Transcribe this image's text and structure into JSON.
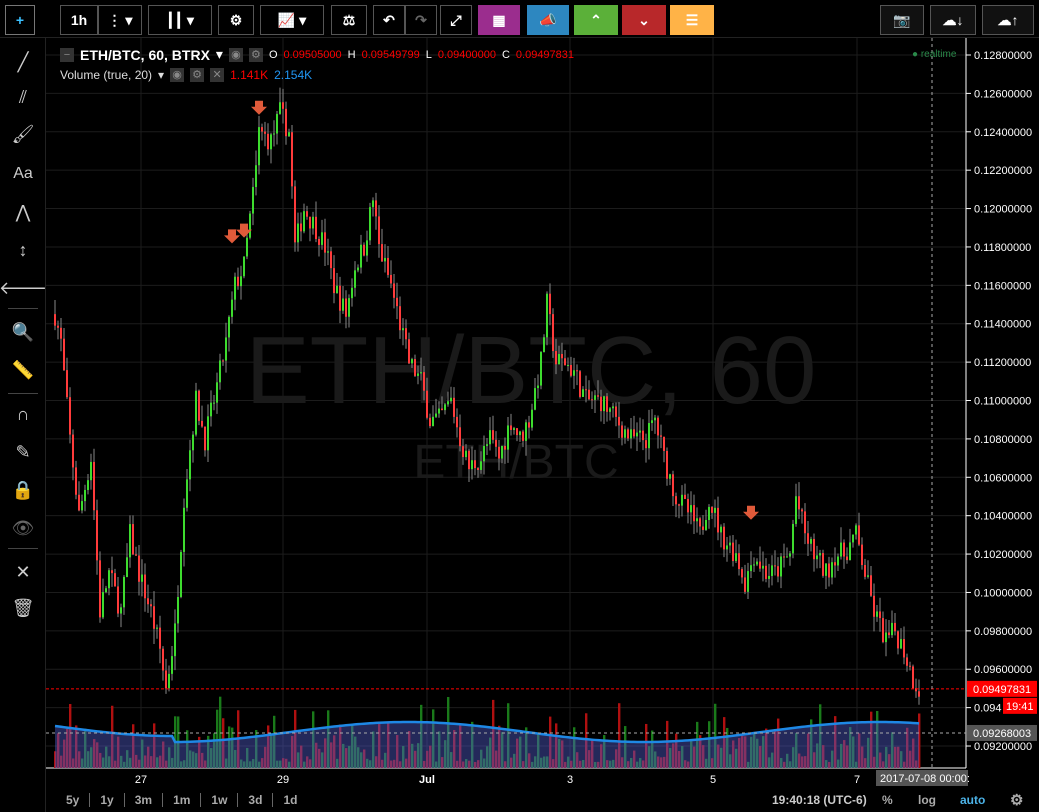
{
  "toolbar": {
    "interval": "1h",
    "buttons": [
      "crosshair",
      "interval",
      "more",
      "chart-type",
      "settings",
      "indicators",
      "compare",
      "undo",
      "redo",
      "fullscreen",
      "binance",
      "announce",
      "up",
      "down",
      "list"
    ],
    "right": [
      "snapshot",
      "load",
      "save"
    ],
    "colors": {
      "purple": "#9b2d8e",
      "blue": "#2d87c0",
      "green": "#5bb039",
      "red": "#b8282a",
      "orange": "#ffb347"
    }
  },
  "legend": {
    "symbol": "ETH/BTC, 60, BTRX",
    "o_label": "O",
    "o": "0.09505000",
    "h_label": "H",
    "h": "0.09549799",
    "l_label": "L",
    "l": "0.09400000",
    "c_label": "C",
    "c": "0.09497831",
    "realtime": "realtime"
  },
  "volume_legend": {
    "label": "Volume (true, 20)",
    "v1": "1.141K",
    "v2": "2.154K"
  },
  "watermark": {
    "main": "ETH/BTC, 60",
    "sub": "ETH/BTC"
  },
  "price_axis": {
    "ticks": [
      "0.12800000",
      "0.12600000",
      "0.12400000",
      "0.12200000",
      "0.12000000",
      "0.11800000",
      "0.11600000",
      "0.11400000",
      "0.11200000",
      "0.11000000",
      "0.10800000",
      "0.10600000",
      "0.10400000",
      "0.10200000",
      "0.10000000",
      "0.09800000",
      "0.09600000",
      "0.094",
      "0.09200000"
    ],
    "last_price": "0.09497831",
    "countdown": "19:41",
    "crosshair_price": "0.09268003"
  },
  "time_axis": {
    "ticks": [
      "27",
      "29",
      "Jul",
      "3",
      "5",
      "7"
    ],
    "crosshair_time": "2017-07-08 00:00:"
  },
  "bottom": {
    "ranges": [
      "5y",
      "1y",
      "3m",
      "1m",
      "1w",
      "3d",
      "1d"
    ],
    "clock": "19:40:18 (UTC-6)",
    "percent": "%",
    "log": "log",
    "auto": "auto"
  },
  "chart_data": {
    "type": "candlestick",
    "ylim": [
      0.0912,
      0.129
    ],
    "keypoints_hour_close": [
      [
        0,
        0.1145
      ],
      [
        2,
        0.113
      ],
      [
        5,
        0.108
      ],
      [
        8,
        0.104
      ],
      [
        12,
        0.107
      ],
      [
        15,
        0.099
      ],
      [
        18,
        0.101
      ],
      [
        22,
        0.099
      ],
      [
        25,
        0.103
      ],
      [
        28,
        0.101
      ],
      [
        32,
        0.099
      ],
      [
        35,
        0.097
      ],
      [
        37,
        0.095
      ],
      [
        40,
        0.098
      ],
      [
        43,
        0.105
      ],
      [
        47,
        0.11
      ],
      [
        50,
        0.108
      ],
      [
        53,
        0.11
      ],
      [
        57,
        0.113
      ],
      [
        60,
        0.116
      ],
      [
        63,
        0.117
      ],
      [
        67,
        0.122
      ],
      [
        68,
        0.124
      ],
      [
        72,
        0.1235
      ],
      [
        75,
        0.125
      ],
      [
        78,
        0.124
      ],
      [
        80,
        0.118
      ],
      [
        83,
        0.12
      ],
      [
        87,
        0.119
      ],
      [
        90,
        0.118
      ],
      [
        93,
        0.116
      ],
      [
        97,
        0.1145
      ],
      [
        100,
        0.117
      ],
      [
        103,
        0.118
      ],
      [
        106,
        0.1205
      ],
      [
        108,
        0.118
      ],
      [
        112,
        0.116
      ],
      [
        115,
        0.114
      ],
      [
        118,
        0.112
      ],
      [
        122,
        0.111
      ],
      [
        125,
        0.109
      ],
      [
        128,
        0.109
      ],
      [
        132,
        0.11
      ],
      [
        135,
        0.108
      ],
      [
        138,
        0.1065
      ],
      [
        142,
        0.107
      ],
      [
        145,
        0.108
      ],
      [
        148,
        0.107
      ],
      [
        152,
        0.109
      ],
      [
        155,
        0.108
      ],
      [
        158,
        0.109
      ],
      [
        162,
        0.112
      ],
      [
        164,
        0.115
      ],
      [
        167,
        0.112
      ],
      [
        170,
        0.112
      ],
      [
        173,
        0.1115
      ],
      [
        177,
        0.11
      ],
      [
        182,
        0.11
      ],
      [
        187,
        0.109
      ],
      [
        192,
        0.108
      ],
      [
        197,
        0.108
      ],
      [
        200,
        0.109
      ],
      [
        203,
        0.107
      ],
      [
        207,
        0.105
      ],
      [
        212,
        0.104
      ],
      [
        215,
        0.103
      ],
      [
        218,
        0.105
      ],
      [
        222,
        0.103
      ],
      [
        227,
        0.102
      ],
      [
        230,
        0.1005
      ],
      [
        233,
        0.102
      ],
      [
        237,
        0.101
      ],
      [
        240,
        0.101
      ],
      [
        245,
        0.102
      ],
      [
        247,
        0.105
      ],
      [
        250,
        0.103
      ],
      [
        253,
        0.102
      ],
      [
        257,
        0.101
      ],
      [
        260,
        0.102
      ],
      [
        263,
        0.102
      ],
      [
        267,
        0.103
      ],
      [
        270,
        0.101
      ],
      [
        273,
        0.099
      ],
      [
        277,
        0.0975
      ],
      [
        280,
        0.098
      ],
      [
        283,
        0.097
      ],
      [
        286,
        0.0955
      ],
      [
        288,
        0.09498
      ]
    ],
    "signals_hour_price": [
      [
        59,
        0.1185
      ],
      [
        63,
        0.1188
      ],
      [
        68,
        0.1252
      ],
      [
        232,
        0.1041
      ]
    ],
    "volume_ma_range": [
      0.0925,
      0.094
    ]
  }
}
